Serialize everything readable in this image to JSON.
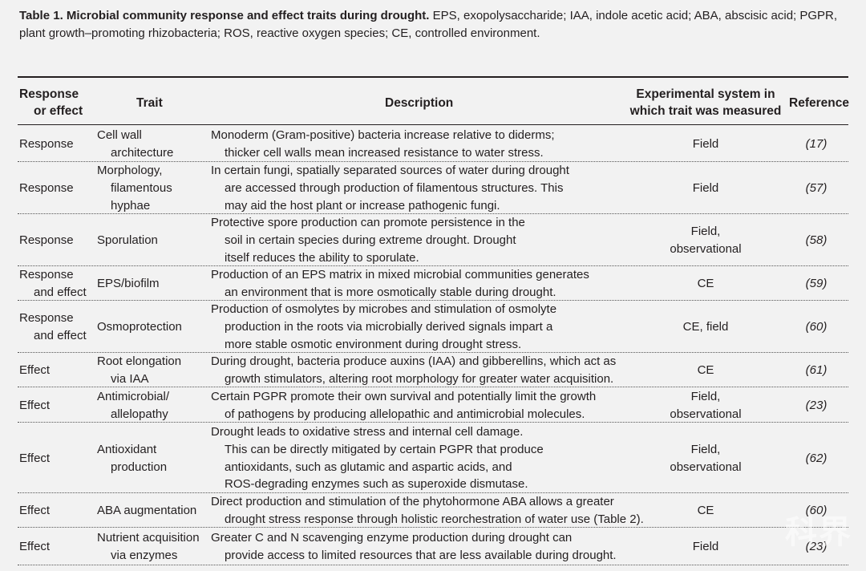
{
  "caption": {
    "lead": "Table 1. Microbial community response and effect traits during drought.",
    "text": "EPS, exopolysaccharide; IAA, indole acetic acid; ABA, abscisic acid; PGPR, plant growth–promoting rhizobacteria; ROS, reactive oxygen species; CE, controlled environment."
  },
  "headers": {
    "response": [
      "Response",
      "or effect"
    ],
    "trait": "Trait",
    "description": "Description",
    "experimental": [
      "Experimental system in",
      "which trait was measured"
    ],
    "reference": "Reference"
  },
  "rows": [
    {
      "response": [
        "Response"
      ],
      "trait": [
        "Cell wall",
        "architecture"
      ],
      "description": [
        "Monoderm (Gram-positive) bacteria increase relative to diderms;",
        "thicker cell walls mean increased resistance to water stress."
      ],
      "experimental": [
        "Field"
      ],
      "reference": "(17)"
    },
    {
      "response": [
        "Response"
      ],
      "trait": [
        "Morphology,",
        "filamentous",
        "hyphae"
      ],
      "description": [
        "In certain fungi, spatially separated sources of water during drought",
        "are accessed through production of filamentous structures. This",
        "may aid the host plant or increase pathogenic fungi."
      ],
      "experimental": [
        "Field"
      ],
      "reference": "(57)"
    },
    {
      "response": [
        "Response"
      ],
      "trait": [
        "Sporulation"
      ],
      "description": [
        "Protective spore production can promote persistence in the",
        "soil in certain species during extreme drought. Drought",
        "itself reduces the ability to sporulate."
      ],
      "experimental": [
        "Field,",
        "observational"
      ],
      "reference": "(58)"
    },
    {
      "response": [
        "Response",
        "and effect"
      ],
      "trait": [
        "EPS/biofilm"
      ],
      "description": [
        "Production of an EPS matrix in mixed microbial communities generates",
        "an environment that is more osmotically stable during drought."
      ],
      "experimental": [
        "CE"
      ],
      "reference": "(59)"
    },
    {
      "response": [
        "Response",
        "and effect"
      ],
      "trait": [
        "Osmoprotection"
      ],
      "description": [
        "Production of osmolytes by microbes and stimulation of osmolyte",
        "production in the roots via microbially derived signals impart a",
        "more stable osmotic environment during drought stress."
      ],
      "experimental": [
        "CE, field"
      ],
      "reference": "(60)"
    },
    {
      "response": [
        "Effect"
      ],
      "trait": [
        "Root elongation",
        "via IAA"
      ],
      "description": [
        "During drought, bacteria produce auxins (IAA) and gibberellins, which act as",
        "growth stimulators, altering root morphology for greater water acquisition."
      ],
      "experimental": [
        "CE"
      ],
      "reference": "(61)"
    },
    {
      "response": [
        "Effect"
      ],
      "trait": [
        "Antimicrobial/",
        "allelopathy"
      ],
      "description": [
        "Certain PGPR promote their own survival and potentially limit the growth",
        "of pathogens by producing allelopathic and antimicrobial molecules."
      ],
      "experimental": [
        "Field,",
        "observational"
      ],
      "reference": "(23)"
    },
    {
      "response": [
        "Effect"
      ],
      "trait": [
        "Antioxidant",
        "production"
      ],
      "description": [
        "Drought leads to oxidative stress and internal cell damage.",
        "This can be directly mitigated by certain PGPR that produce",
        "antioxidants, such as glutamic and aspartic acids, and",
        "ROS-degrading enzymes such as superoxide dismutase."
      ],
      "experimental": [
        "Field,",
        "observational"
      ],
      "reference": "(62)"
    },
    {
      "response": [
        "Effect"
      ],
      "trait": [
        "ABA augmentation"
      ],
      "description": [
        "Direct production and stimulation of the phytohormone ABA allows a greater",
        "drought stress response through holistic reorchestration of water use (Table 2)."
      ],
      "experimental": [
        "CE"
      ],
      "reference": "(60)"
    },
    {
      "response": [
        "Effect"
      ],
      "trait": [
        "Nutrient acquisition",
        "via enzymes"
      ],
      "description": [
        "Greater C and N scavenging enzyme production during drought can",
        "provide access to limited resources that are less available during drought."
      ],
      "experimental": [
        "Field"
      ],
      "reference": "(23)"
    }
  ],
  "watermark": "科界"
}
